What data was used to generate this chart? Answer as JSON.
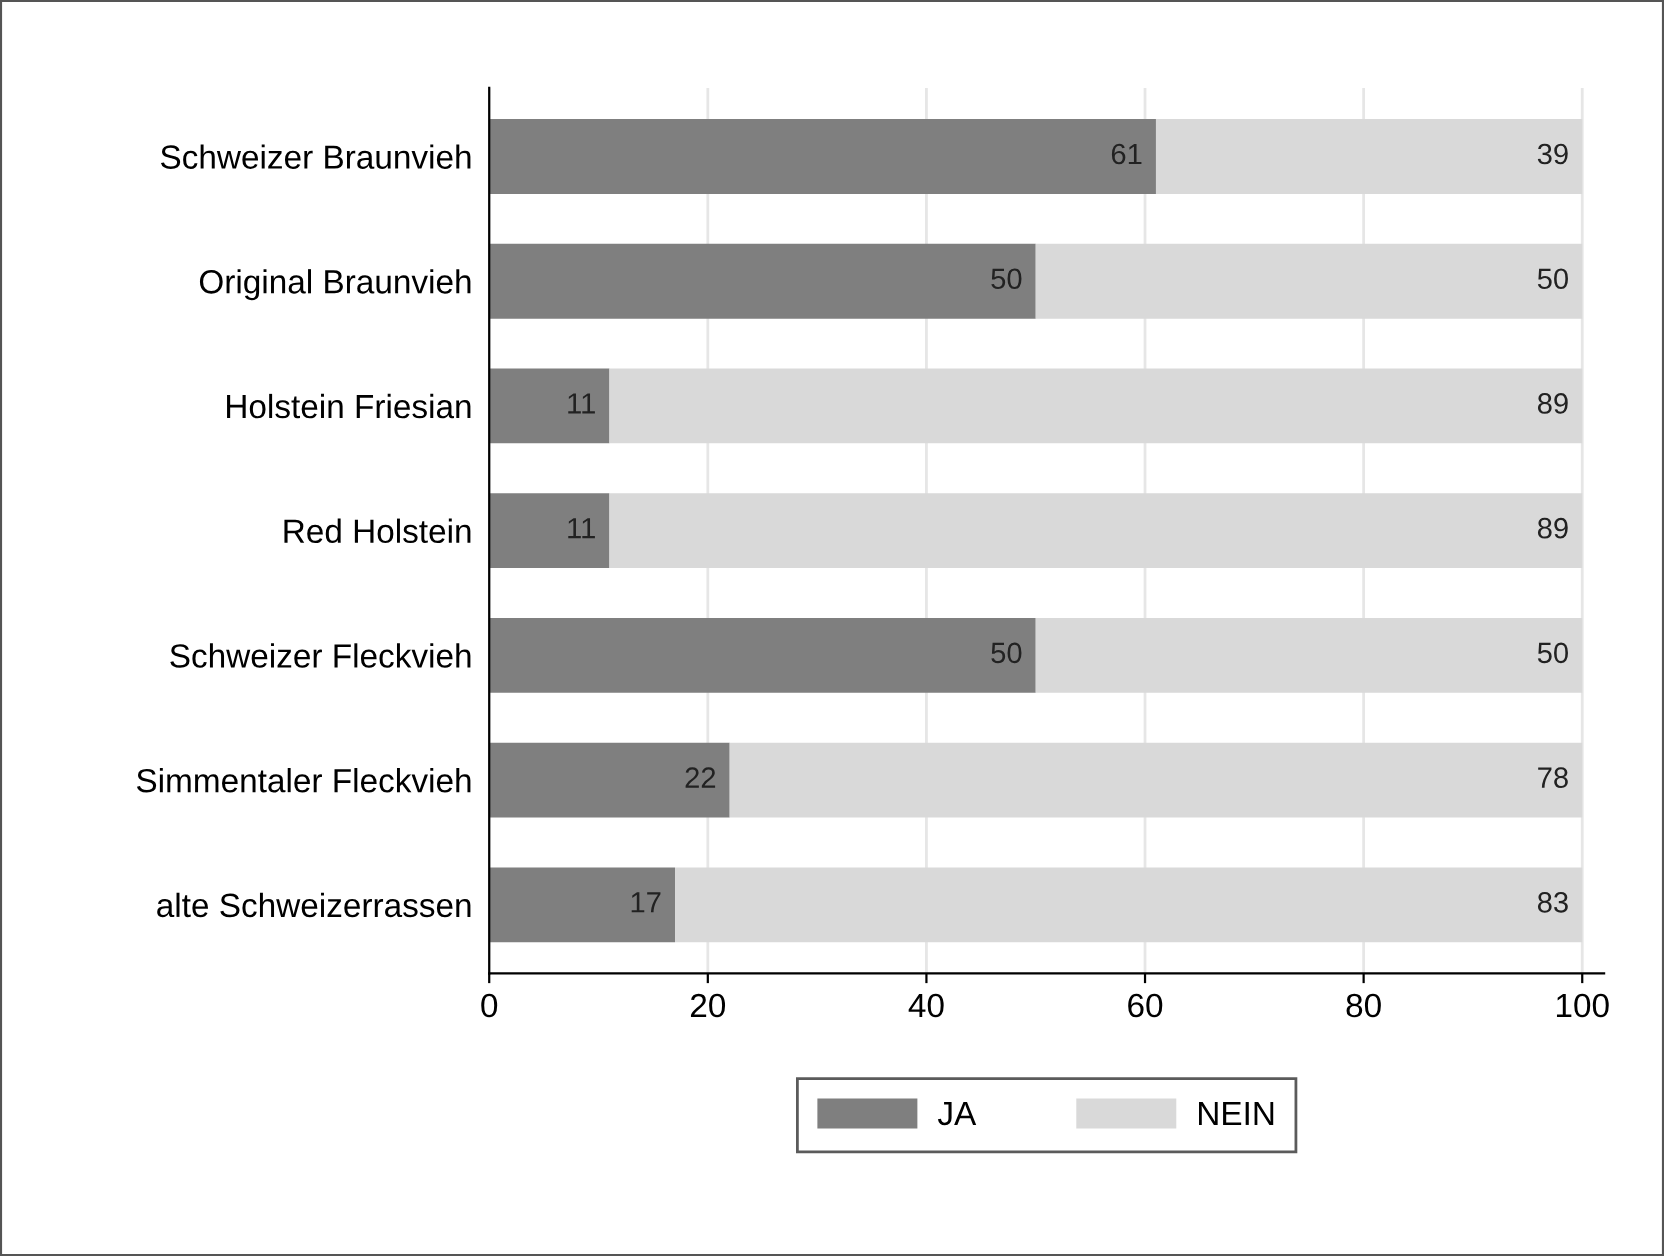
{
  "chart_data": {
    "type": "bar",
    "orientation": "horizontal",
    "stacked": true,
    "categories": [
      "Schweizer Braunvieh",
      "Original Braunvieh",
      "Holstein Friesian",
      "Red Holstein",
      "Schweizer Fleckvieh",
      "Simmentaler Fleckvieh",
      "alte Schweizerrassen"
    ],
    "series": [
      {
        "name": "JA",
        "color": "#7f7f7f",
        "values": [
          61,
          50,
          11,
          11,
          50,
          22,
          17
        ]
      },
      {
        "name": "NEIN",
        "color": "#d9d9d9",
        "values": [
          39,
          50,
          89,
          89,
          50,
          78,
          83
        ]
      }
    ],
    "xlim": [
      0,
      102
    ],
    "xticks": [
      0,
      20,
      40,
      60,
      80,
      100
    ],
    "grid": "x",
    "legend": "bottom",
    "data_labels": true
  }
}
